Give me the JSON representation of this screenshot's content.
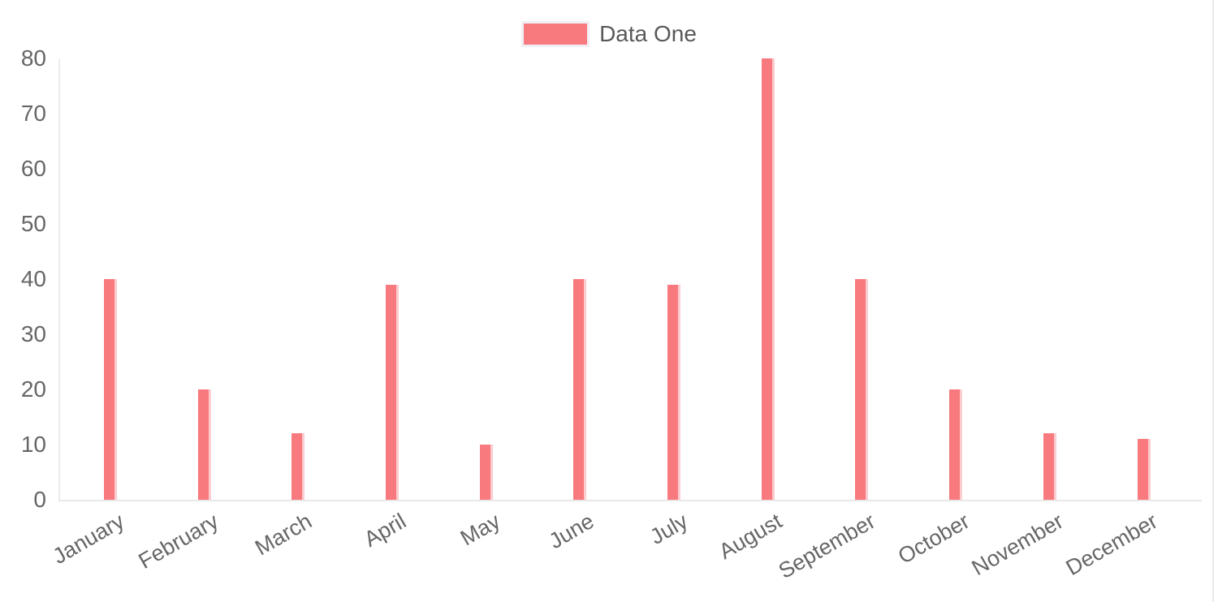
{
  "legend": {
    "label": "Data One"
  },
  "chart_data": {
    "type": "bar",
    "title": "",
    "xlabel": "",
    "ylabel": "",
    "categories": [
      "January",
      "February",
      "March",
      "April",
      "May",
      "June",
      "July",
      "August",
      "September",
      "October",
      "November",
      "December"
    ],
    "series": [
      {
        "name": "Data One",
        "values": [
          40,
          20,
          12,
          39,
          10,
          40,
          39,
          80,
          40,
          20,
          12,
          11
        ]
      }
    ],
    "ylim": [
      0,
      80
    ],
    "yticks": [
      0,
      10,
      20,
      30,
      40,
      50,
      60,
      70,
      80
    ],
    "grid": false,
    "legend_position": "top",
    "colors": {
      "bar_fill": "#f8797e",
      "bar_edge": "#fbccd0",
      "legend_swatch_border": "#f0f0f4",
      "axis_line": "#e8e8e8",
      "tick_text": "#666666",
      "legend_text": "#595959"
    }
  }
}
